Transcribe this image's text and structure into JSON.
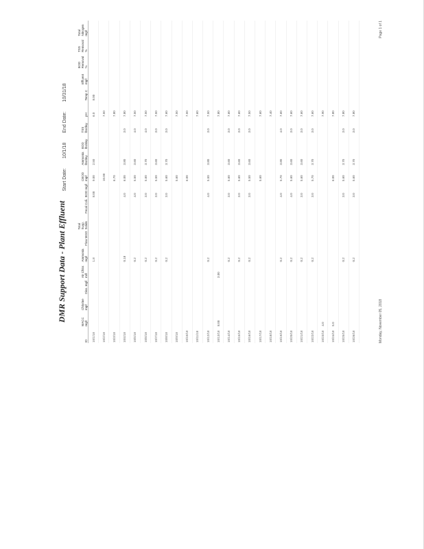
{
  "title": "DMR Support Data - Plant Effluent",
  "start_date_label": "Start Date:",
  "start_date": "10/1/18",
  "end_date_label": "End Date:",
  "end_date": "10/31/18",
  "columns": [
    "ID",
    "MACC mg/l",
    "Chlorine mg/l",
    "Diss. mg/l",
    "Air Chlor. ml/l",
    "Ammonia mg/l",
    "Flow MGD",
    "Total Susp. Solids",
    "Fecal Coli.",
    "BOD mg/l",
    "CBOD mg/l",
    "Ammonia lbs/day",
    "BOD lbs/day",
    "TSS lbs/day",
    "pH",
    "Temp C",
    "Effluent mg/l",
    "BOD Removal %",
    "TSS Removal %",
    "Total Nitrogen mg/l"
  ],
  "rows": [
    [
      "10/1/18",
      "",
      "",
      "",
      "",
      "1.8",
      "",
      "",
      "",
      "8.00",
      "9.00",
      "2.50",
      "",
      "",
      "6.0",
      "8.00",
      "",
      "",
      "",
      ""
    ],
    [
      "10/2/18",
      "",
      "",
      "",
      "",
      "",
      "",
      "",
      "",
      "",
      "10.00",
      "",
      "",
      "",
      "7.50",
      "",
      "",
      "",
      "",
      ""
    ],
    [
      "10/3/18",
      "",
      "",
      "",
      "",
      "",
      "",
      "",
      "",
      "",
      "6.70",
      "",
      "",
      "",
      "7.80",
      "",
      "",
      "",
      "",
      ""
    ],
    [
      "10/4/18",
      "",
      "",
      "",
      "",
      "0.18",
      "",
      "",
      "",
      "4.0",
      "6.00",
      "3.80",
      "",
      "3.0",
      "7.80",
      "",
      "",
      "",
      "",
      ""
    ],
    [
      "10/5/18",
      "",
      "",
      "",
      "",
      "0.2",
      "",
      "",
      "",
      "4.0",
      "5.50",
      "3.60",
      "",
      "4.0",
      "7.50",
      "",
      "",
      "",
      "",
      ""
    ],
    [
      "10/6/18",
      "",
      "",
      "",
      "",
      "0.2",
      "",
      "",
      "",
      "3.0",
      "5.60",
      "3.70",
      "",
      "4.0",
      "7.50",
      "",
      "",
      "",
      "",
      ""
    ],
    [
      "10/7/18",
      "",
      "",
      "",
      "",
      "0.2",
      "",
      "",
      "",
      "3.0",
      "5.50",
      "3.60",
      "",
      "3.0",
      "7.50",
      "",
      "",
      "",
      "",
      ""
    ],
    [
      "10/8/18",
      "",
      "",
      "",
      "",
      "0.2",
      "",
      "",
      "",
      "3.0",
      "5.60",
      "3.70",
      "",
      "3.0",
      "7.60",
      "",
      "",
      "",
      "",
      ""
    ],
    [
      "10/9/18",
      "",
      "",
      "",
      "",
      "",
      "",
      "",
      "",
      "",
      "5.60",
      "",
      "",
      "",
      "7.50",
      "",
      "",
      "",
      "",
      ""
    ],
    [
      "10/10/18",
      "",
      "",
      "",
      "",
      "",
      "",
      "",
      "",
      "",
      "6.00",
      "",
      "",
      "",
      "7.50",
      "",
      "",
      "",
      "",
      ""
    ],
    [
      "10/11/18",
      "",
      "",
      "",
      "",
      "",
      "",
      "",
      "",
      "",
      "",
      "",
      "",
      "",
      "7.60",
      "",
      "",
      "",
      "",
      ""
    ],
    [
      "10/12/18",
      "",
      "",
      "",
      "",
      "0.2",
      "",
      "",
      "",
      "4.0",
      "5.50",
      "3.80",
      "",
      "3.0",
      "7.50",
      "",
      "",
      "",
      "",
      ""
    ],
    [
      "10/13/18",
      "8.00",
      "",
      "",
      "3.00",
      "",
      "",
      "",
      "",
      "",
      "",
      "",
      "",
      "",
      "7.80",
      "",
      "",
      "",
      "",
      ""
    ],
    [
      "10/14/18",
      "",
      "",
      "",
      "",
      "0.2",
      "",
      "",
      "",
      "3.0",
      "5.60",
      "3.60",
      "",
      "3.0",
      "7.60",
      "",
      "",
      "",
      "",
      ""
    ],
    [
      "10/15/18",
      "",
      "",
      "",
      "",
      "0.2",
      "",
      "",
      "",
      "3.0",
      "5.60",
      "3.60",
      "",
      "3.0",
      "7.60",
      "",
      "",
      "",
      "",
      ""
    ],
    [
      "10/16/18",
      "",
      "",
      "",
      "",
      "0.2",
      "",
      "",
      "",
      "3.0",
      "5.50",
      "3.60",
      "",
      "3.0",
      "7.50",
      "",
      "",
      "",
      "",
      ""
    ],
    [
      "10/17/18",
      "",
      "",
      "",
      "",
      "",
      "",
      "",
      "",
      "",
      "5.60",
      "",
      "",
      "",
      "7.60",
      "",
      "",
      "",
      "",
      ""
    ],
    [
      "10/18/18",
      "",
      "",
      "",
      "",
      "",
      "",
      "",
      "",
      "",
      "",
      "",
      "",
      "",
      "7.40",
      "",
      "",
      "",
      "",
      ""
    ],
    [
      "10/19/18",
      "",
      "",
      "",
      "",
      "0.2",
      "",
      "",
      "",
      "4.0",
      "5.70",
      "3.80",
      "",
      "4.0",
      "7.60",
      "",
      "",
      "",
      "",
      ""
    ],
    [
      "10/20/18",
      "",
      "",
      "",
      "",
      "0.2",
      "",
      "",
      "",
      "4.0",
      "5.60",
      "3.60",
      "",
      "3.0",
      "7.60",
      "",
      "",
      "",
      "",
      ""
    ],
    [
      "10/21/18",
      "",
      "",
      "",
      "",
      "0.2",
      "",
      "",
      "",
      "3.0",
      "5.60",
      "3.60",
      "",
      "3.0",
      "7.60",
      "",
      "",
      "",
      "",
      ""
    ],
    [
      "10/22/18",
      "",
      "",
      "",
      "",
      "0.2",
      "",
      "",
      "",
      "3.0",
      "5.70",
      "3.70",
      "",
      "3.0",
      "7.60",
      "",
      "",
      "",
      "",
      ""
    ],
    [
      "10/23/18",
      "4.0",
      "",
      "",
      "",
      "",
      "",
      "",
      "",
      "",
      "",
      "",
      "",
      "",
      "7.90",
      "",
      "",
      "",
      "",
      ""
    ],
    [
      "10/24/18",
      "5.0",
      "",
      "",
      "",
      "",
      "",
      "",
      "",
      "",
      "6.00",
      "",
      "",
      "",
      "7.80",
      "",
      "",
      "",
      "",
      ""
    ],
    [
      "10/25/18",
      "",
      "",
      "",
      "",
      "0.2",
      "",
      "",
      "",
      "3.0",
      "5.60",
      "3.70",
      "",
      "3.0",
      "7.80",
      "",
      "",
      "",
      "",
      ""
    ],
    [
      "10/26/18",
      "",
      "",
      "",
      "",
      "0.2",
      "",
      "",
      "",
      "3.0",
      "5.60",
      "3.70",
      "",
      "3.0",
      "7.80",
      "",
      "",
      "",
      "",
      ""
    ]
  ],
  "footer": {
    "printed": "Monday, November 05, 2018",
    "page": "Page 1 of 1"
  }
}
